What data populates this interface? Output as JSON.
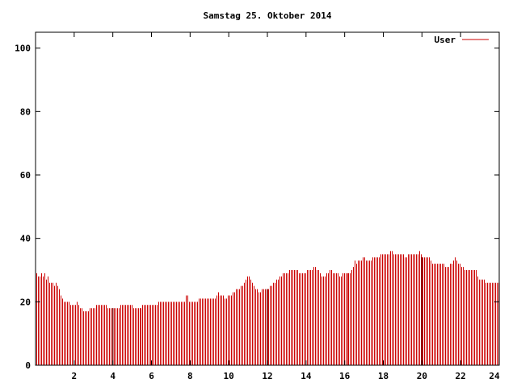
{
  "chart_data": {
    "type": "bar",
    "title": "Samstag 25. Oktober 2014",
    "xlabel": "",
    "ylabel": "",
    "xlim": [
      0,
      24
    ],
    "ylim": [
      0,
      105
    ],
    "x_ticks": [
      2,
      4,
      6,
      8,
      10,
      12,
      14,
      16,
      18,
      20,
      22,
      24
    ],
    "x_tick_labels": [
      "2",
      "4",
      "6",
      "8",
      "10",
      "12",
      "14",
      "16",
      "18",
      "20",
      "22",
      "24"
    ],
    "y_ticks": [
      0,
      20,
      40,
      60,
      80,
      100
    ],
    "y_tick_labels": [
      "0",
      "20",
      "40",
      "60",
      "80",
      "100"
    ],
    "grid": false,
    "legend_position": "top-right",
    "series": [
      {
        "name": "User",
        "color": "#cc0000",
        "x_step_hours": 0.0833,
        "values": [
          29,
          28,
          28,
          29,
          28,
          29,
          27,
          28,
          26,
          26,
          26,
          25,
          26,
          25,
          24,
          22,
          21,
          20,
          20,
          20,
          20,
          19,
          19,
          19,
          19,
          20,
          19,
          18,
          18,
          17,
          17,
          17,
          17,
          18,
          18,
          18,
          18,
          19,
          19,
          19,
          19,
          19,
          19,
          19,
          18,
          18,
          18,
          18,
          18,
          18,
          18,
          18,
          19,
          19,
          19,
          19,
          19,
          19,
          19,
          19,
          18,
          18,
          18,
          18,
          18,
          18,
          19,
          19,
          19,
          19,
          19,
          19,
          19,
          19,
          19,
          19,
          20,
          20,
          20,
          20,
          20,
          20,
          20,
          20,
          20,
          20,
          20,
          20,
          20,
          20,
          20,
          20,
          20,
          22,
          22,
          20,
          20,
          20,
          20,
          20,
          20,
          21,
          21,
          21,
          21,
          21,
          21,
          21,
          21,
          21,
          21,
          21,
          22,
          23,
          22,
          22,
          22,
          21,
          21,
          22,
          22,
          22,
          23,
          23,
          24,
          24,
          24,
          25,
          25,
          26,
          27,
          28,
          28,
          27,
          26,
          25,
          24,
          24,
          23,
          23,
          24,
          24,
          24,
          24,
          24,
          25,
          25,
          26,
          26,
          27,
          27,
          28,
          28,
          29,
          29,
          29,
          29,
          30,
          30,
          30,
          30,
          30,
          30,
          29,
          29,
          29,
          29,
          29,
          30,
          30,
          30,
          30,
          31,
          31,
          30,
          30,
          29,
          28,
          28,
          28,
          29,
          29,
          30,
          30,
          29,
          29,
          29,
          29,
          28,
          28,
          29,
          29,
          29,
          29,
          29,
          29,
          30,
          31,
          33,
          32,
          33,
          33,
          33,
          34,
          34,
          33,
          33,
          33,
          33,
          34,
          34,
          34,
          34,
          34,
          35,
          35,
          35,
          35,
          35,
          35,
          36,
          36,
          35,
          35,
          35,
          35,
          35,
          35,
          35,
          34,
          34,
          35,
          35,
          35,
          35,
          35,
          35,
          35,
          36,
          35,
          34,
          34,
          34,
          34,
          34,
          33,
          32,
          32,
          32,
          32,
          32,
          32,
          32,
          32,
          31,
          31,
          31,
          32,
          32,
          33,
          34,
          33,
          32,
          32,
          31,
          31,
          30,
          30,
          30,
          30,
          30,
          30,
          30,
          30,
          28,
          27,
          27,
          27,
          27,
          26,
          26,
          26,
          26,
          26,
          26,
          26,
          26,
          26
        ],
        "heavy_marks_hours": [
          4,
          12,
          20
        ]
      }
    ]
  }
}
